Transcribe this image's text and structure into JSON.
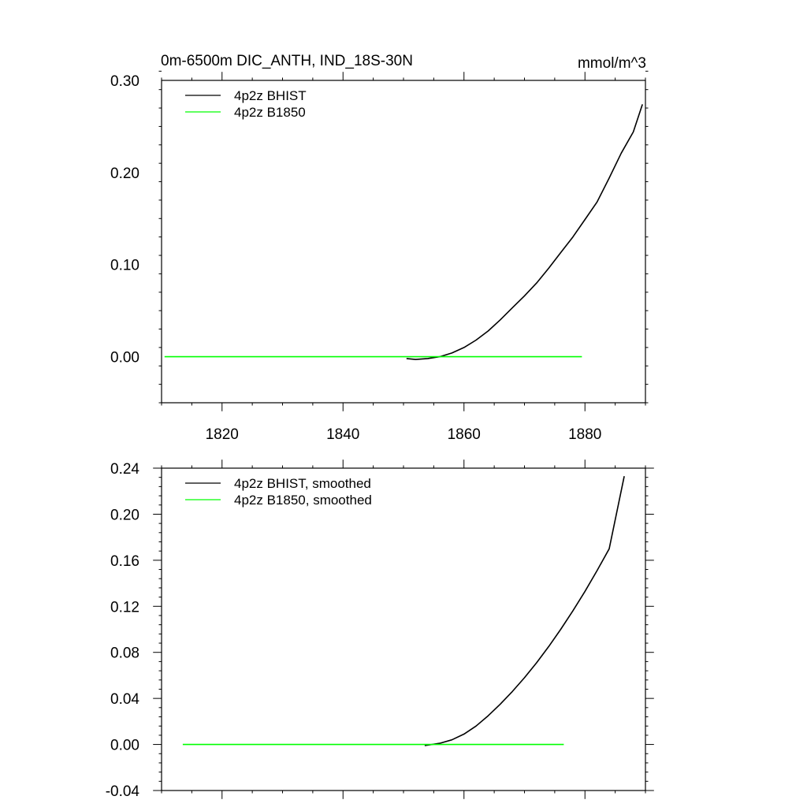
{
  "chart_data": [
    {
      "type": "line",
      "title": "0m-6500m DIC_ANTH, IND_18S-30N",
      "units": "mmol/m^3",
      "xlabel": "",
      "ylabel": "",
      "xlim": [
        1810,
        1890
      ],
      "ylim": [
        -0.05,
        0.3
      ],
      "grid": false,
      "legend_position": "top-left",
      "x_ticks": [
        1820,
        1840,
        1860,
        1880
      ],
      "x_tick_labels": [
        "1820",
        "1840",
        "1860",
        "1880"
      ],
      "y_ticks": [
        0.0,
        0.1,
        0.2,
        0.3
      ],
      "y_tick_labels": [
        "0.00",
        "0.10",
        "0.20",
        "0.30"
      ],
      "series": [
        {
          "name": "4p2z BHIST",
          "color": "#000000",
          "x": [
            1850.5,
            1852,
            1854,
            1856,
            1858,
            1860,
            1862,
            1864,
            1866,
            1868,
            1870,
            1872,
            1874,
            1876,
            1878,
            1880,
            1882,
            1884,
            1886,
            1888,
            1889.5
          ],
          "y": [
            -0.002,
            -0.003,
            -0.002,
            0.0,
            0.004,
            0.01,
            0.018,
            0.028,
            0.04,
            0.053,
            0.066,
            0.08,
            0.096,
            0.113,
            0.13,
            0.149,
            0.168,
            0.194,
            0.221,
            0.244,
            0.274
          ]
        },
        {
          "name": "4p2z B1850",
          "color": "#00ff00",
          "x": [
            1810.5,
            1879.5
          ],
          "y": [
            0.0,
            0.0
          ]
        }
      ]
    },
    {
      "type": "line",
      "title": "",
      "xlabel": "",
      "ylabel": "",
      "xlim": [
        1810,
        1890
      ],
      "ylim": [
        -0.04,
        0.24
      ],
      "grid": false,
      "legend_position": "top-left",
      "x_ticks": [
        1820,
        1840,
        1860,
        1880
      ],
      "y_ticks": [
        -0.04,
        0.0,
        0.04,
        0.08,
        0.12,
        0.16,
        0.2,
        0.24
      ],
      "y_tick_labels": [
        "-0.04",
        "0.00",
        "0.04",
        "0.08",
        "0.12",
        "0.16",
        "0.20",
        "0.24"
      ],
      "series": [
        {
          "name": "4p2z BHIST, smoothed",
          "color": "#000000",
          "x": [
            1853.5,
            1856,
            1858,
            1860,
            1862,
            1864,
            1866,
            1868,
            1870,
            1872,
            1874,
            1876,
            1878,
            1880,
            1882,
            1884,
            1886.5
          ],
          "y": [
            -0.001,
            0.001,
            0.004,
            0.009,
            0.016,
            0.025,
            0.035,
            0.046,
            0.058,
            0.071,
            0.085,
            0.1,
            0.116,
            0.133,
            0.151,
            0.17,
            0.233
          ]
        },
        {
          "name": "4p2z B1850, smoothed",
          "color": "#00ff00",
          "x": [
            1813.5,
            1876.5
          ],
          "y": [
            0.0,
            0.0
          ]
        }
      ]
    }
  ]
}
